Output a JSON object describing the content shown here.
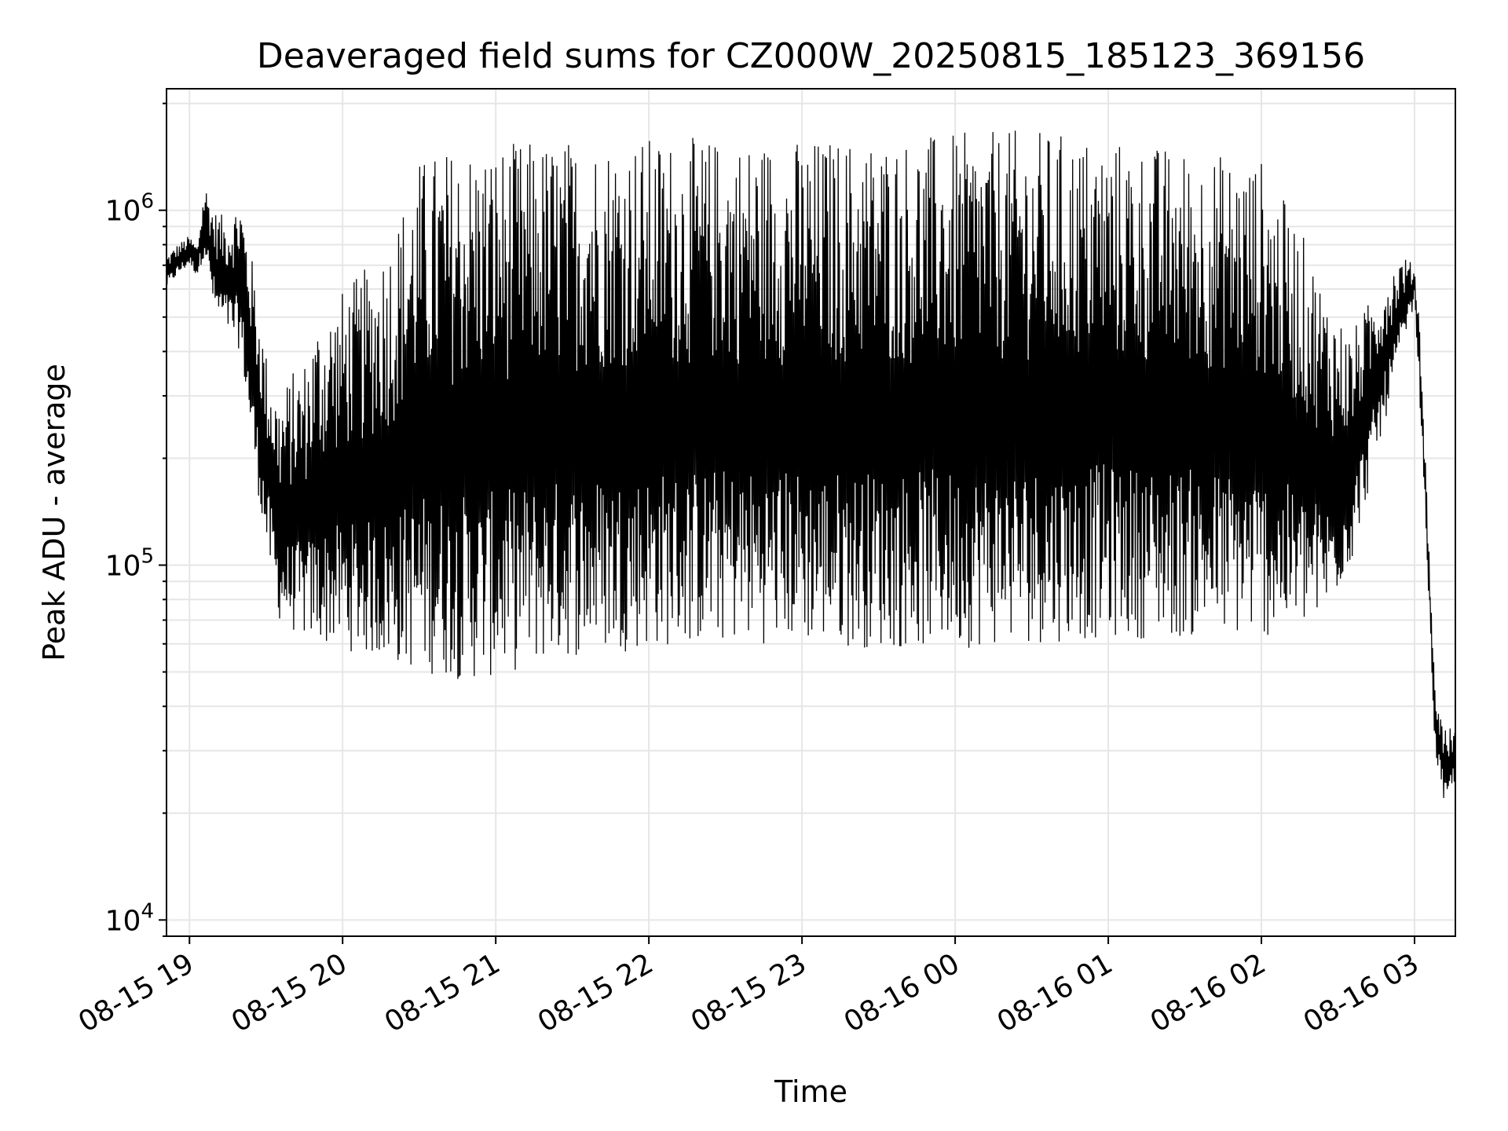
{
  "chart_data": {
    "type": "line",
    "title": "Deaveraged field sums for CZ000W_20250815_185123_369156",
    "xlabel": "Time",
    "ylabel": "Peak ADU - average",
    "y_scale": "log",
    "ylim": [
      9000,
      2200000
    ],
    "xlim": [
      "2025-08-15 18:51",
      "2025-08-16 03:16"
    ],
    "x_ticks": [
      {
        "label": "08-15 19",
        "time": "2025-08-15 19:00"
      },
      {
        "label": "08-15 20",
        "time": "2025-08-15 20:00"
      },
      {
        "label": "08-15 21",
        "time": "2025-08-15 21:00"
      },
      {
        "label": "08-15 22",
        "time": "2025-08-15 22:00"
      },
      {
        "label": "08-15 23",
        "time": "2025-08-15 23:00"
      },
      {
        "label": "08-16 00",
        "time": "2025-08-16 00:00"
      },
      {
        "label": "08-16 01",
        "time": "2025-08-16 01:00"
      },
      {
        "label": "08-16 02",
        "time": "2025-08-16 02:00"
      },
      {
        "label": "08-16 03",
        "time": "2025-08-16 03:00"
      }
    ],
    "y_ticks": [
      {
        "base": "10",
        "exp": "4",
        "value": 10000
      },
      {
        "base": "10",
        "exp": "5",
        "value": 100000
      },
      {
        "base": "10",
        "exp": "6",
        "value": 1000000
      }
    ],
    "grid": true,
    "line_color": "#000000",
    "grid_color": "#e6e6e6",
    "series": [
      {
        "x": [
          "2025-08-15 18:51",
          "2025-08-15 18:55",
          "2025-08-15 19:00",
          "2025-08-15 19:03",
          "2025-08-15 19:06",
          "2025-08-15 19:10",
          "2025-08-15 19:15",
          "2025-08-15 19:20",
          "2025-08-15 19:25",
          "2025-08-15 19:30",
          "2025-08-15 19:35",
          "2025-08-15 19:40",
          "2025-08-15 19:45",
          "2025-08-15 19:50",
          "2025-08-15 20:00",
          "2025-08-15 20:10",
          "2025-08-15 20:20",
          "2025-08-15 20:30",
          "2025-08-15 20:40",
          "2025-08-15 20:50",
          "2025-08-15 21:00",
          "2025-08-15 21:15",
          "2025-08-15 21:30",
          "2025-08-15 22:00",
          "2025-08-15 22:30",
          "2025-08-15 23:00",
          "2025-08-15 23:30",
          "2025-08-16 00:00",
          "2025-08-16 00:30",
          "2025-08-16 01:00",
          "2025-08-16 01:30",
          "2025-08-16 02:00",
          "2025-08-16 02:15",
          "2025-08-16 02:25",
          "2025-08-16 02:35",
          "2025-08-16 02:45",
          "2025-08-16 02:55",
          "2025-08-16 03:00",
          "2025-08-16 03:02",
          "2025-08-16 03:05",
          "2025-08-16 03:08",
          "2025-08-16 03:12",
          "2025-08-16 03:16"
        ],
        "low": [
          600000,
          650000,
          700000,
          650000,
          750000,
          500000,
          450000,
          400000,
          200000,
          110000,
          70000,
          65000,
          62000,
          60000,
          58000,
          55000,
          52000,
          50000,
          48000,
          47000,
          48000,
          52000,
          55000,
          58000,
          60000,
          60000,
          58000,
          58000,
          60000,
          62000,
          62000,
          62000,
          65000,
          70000,
          100000,
          200000,
          400000,
          550000,
          300000,
          100000,
          30000,
          20000,
          25000
        ],
        "high": [
          750000,
          800000,
          850000,
          800000,
          1200000,
          1000000,
          950000,
          1100000,
          700000,
          400000,
          300000,
          350000,
          380000,
          500000,
          600000,
          700000,
          900000,
          1400000,
          1500000,
          1550000,
          1550000,
          1580000,
          1600000,
          1620000,
          1600000,
          1600000,
          1620000,
          1650000,
          1700000,
          1600000,
          1500000,
          1400000,
          900000,
          600000,
          450000,
          600000,
          750000,
          700000,
          500000,
          150000,
          45000,
          35000,
          35000
        ]
      }
    ]
  }
}
